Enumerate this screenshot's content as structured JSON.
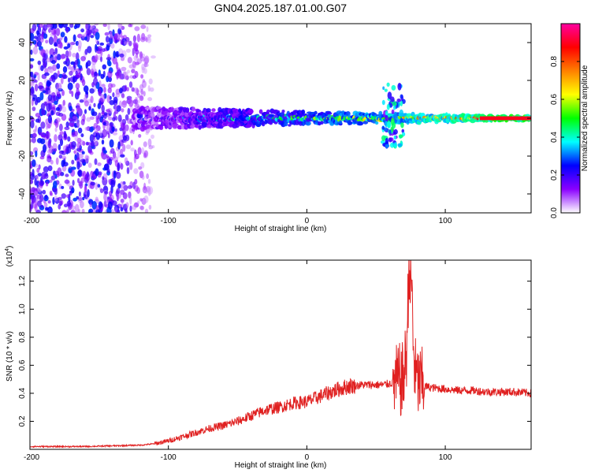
{
  "title": "GN04.2025.187.01.00.G07",
  "chart_data": [
    {
      "type": "heatmap",
      "title": "GN04.2025.187.01.00.G07",
      "xlabel": "Height of straight line (km)",
      "ylabel": "Frequency (Hz)",
      "xlim": [
        -200,
        162
      ],
      "ylim": [
        -50,
        50
      ],
      "xticks": [
        -200,
        -100,
        0,
        100
      ],
      "xtick_labels": [
        "-200",
        "-100",
        "0",
        "100"
      ],
      "yticks": [
        -40,
        -20,
        0,
        20,
        40
      ],
      "ytick_labels": [
        "-40",
        "-20",
        "0",
        "20",
        "40"
      ],
      "colorbar": {
        "label": "Normalized spectral amplitude",
        "range": [
          0,
          1
        ],
        "ticks": [
          0.0,
          0.2,
          0.4,
          0.6,
          0.8
        ],
        "tick_labels": [
          "0.0",
          "0.2",
          "0.4",
          "0.6",
          "0.8"
        ],
        "colormap": [
          "#ffffff",
          "#8a00ff",
          "#0000ff",
          "#00ffff",
          "#00ff00",
          "#ffff00",
          "#ff8000",
          "#ff0000",
          "#ff00a0"
        ]
      },
      "grid": false,
      "features": {
        "noise_region_x": [
          -200,
          -120
        ],
        "band_center_hz": 0,
        "band_x": [
          -125,
          162
        ],
        "burst_x": [
          55,
          70
        ],
        "burst_freq_range": [
          -15,
          18
        ]
      }
    },
    {
      "type": "line",
      "xlabel": "Height of straight line (km)",
      "ylabel": "SNR (10 * v/v)",
      "y_multiplier": "(x10^4)",
      "xlim": [
        -200,
        162
      ],
      "ylim": [
        0,
        1.35
      ],
      "xticks": [
        -200,
        -100,
        0,
        100
      ],
      "xtick_labels": [
        "-200",
        "-100",
        "0",
        "100"
      ],
      "yticks": [
        0.2,
        0.4,
        0.6,
        0.8,
        1.0,
        1.2
      ],
      "ytick_labels": [
        "0.2",
        "0.4",
        "0.6",
        "0.8",
        "1.0",
        "1.2"
      ],
      "grid": false,
      "line_color": "#e02020",
      "x": [
        -200,
        -180,
        -160,
        -140,
        -120,
        -110,
        -100,
        -90,
        -80,
        -70,
        -60,
        -50,
        -40,
        -30,
        -20,
        -10,
        0,
        10,
        20,
        30,
        40,
        50,
        55,
        60,
        65,
        70,
        72,
        74,
        76,
        78,
        80,
        85,
        90,
        100,
        110,
        120,
        130,
        140,
        150,
        162
      ],
      "y": [
        0.02,
        0.02,
        0.02,
        0.025,
        0.03,
        0.04,
        0.06,
        0.09,
        0.12,
        0.15,
        0.17,
        0.2,
        0.24,
        0.28,
        0.3,
        0.33,
        0.34,
        0.38,
        0.42,
        0.45,
        0.46,
        0.46,
        0.46,
        0.47,
        0.48,
        0.5,
        0.7,
        1.34,
        0.95,
        0.55,
        0.48,
        0.45,
        0.44,
        0.43,
        0.42,
        0.42,
        0.41,
        0.41,
        0.41,
        0.4
      ],
      "y_noise_amplitude_note": null
    }
  ]
}
